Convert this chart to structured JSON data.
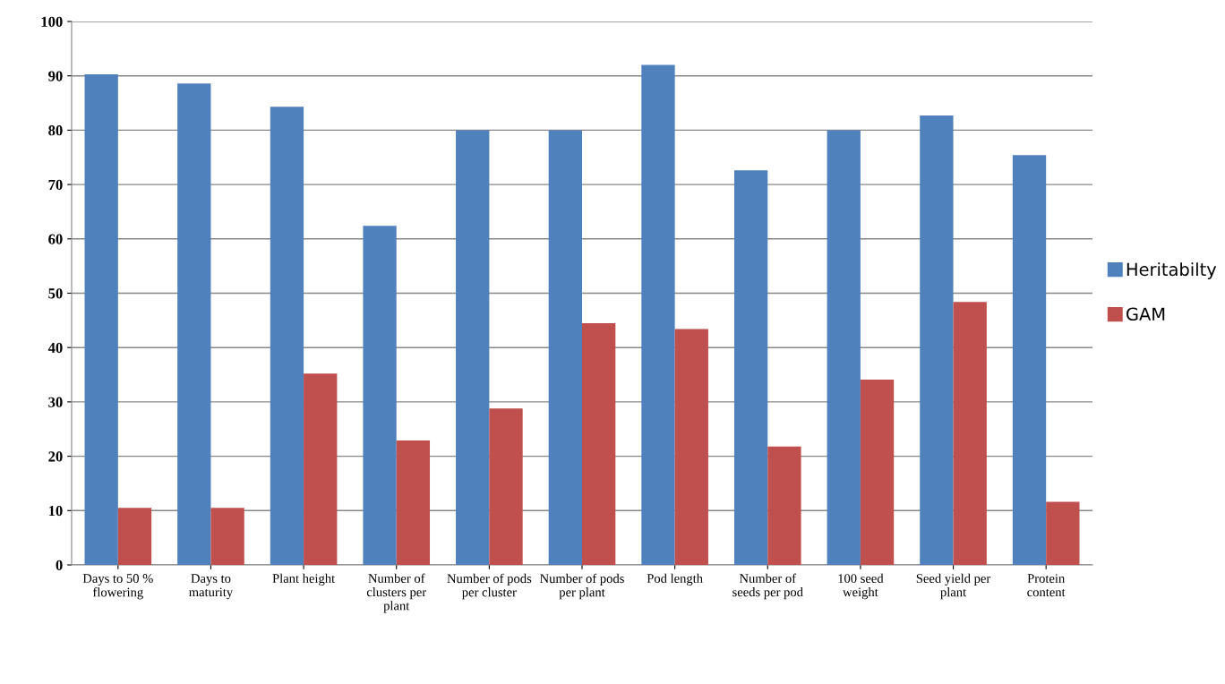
{
  "chart_data": {
    "type": "bar",
    "categories": [
      "Days to 50 % flowering",
      "Days to maturity",
      "Plant height",
      "Number of clusters per plant",
      "Number of pods per cluster",
      "Number of pods per plant",
      "Pod length",
      "Number of seeds per pod",
      "100 seed weight",
      "Seed yield per plant",
      "Protein content"
    ],
    "series": [
      {
        "name": "Heritabilty",
        "color": "#4f81bd",
        "values": [
          90.3,
          88.6,
          84.3,
          62.4,
          80.0,
          80.0,
          92.0,
          72.6,
          80.0,
          82.7,
          75.4
        ]
      },
      {
        "name": "GAM",
        "color": "#c0504d",
        "values": [
          10.5,
          10.5,
          35.2,
          22.9,
          28.8,
          44.5,
          43.4,
          21.8,
          34.1,
          48.4,
          11.6
        ]
      }
    ],
    "ylim": [
      0,
      100
    ],
    "yticks": [
      0,
      10,
      20,
      30,
      40,
      50,
      60,
      70,
      80,
      90,
      100
    ],
    "grid": "y",
    "legend": "right"
  }
}
